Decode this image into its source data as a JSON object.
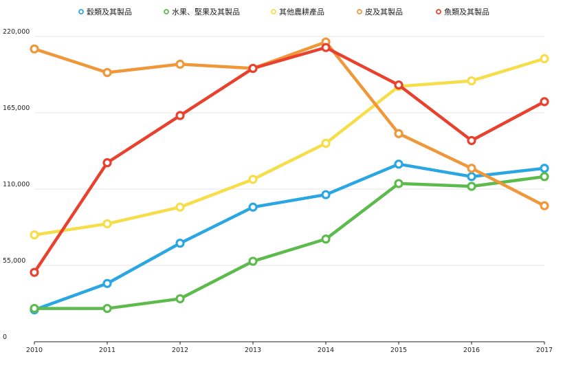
{
  "chart_data": {
    "type": "line",
    "title": "",
    "xlabel": "",
    "ylabel": "",
    "x": [
      "2010",
      "2011",
      "2012",
      "2013",
      "2014",
      "2015",
      "2016",
      "2017"
    ],
    "ylim": [
      0,
      220000
    ],
    "yticks": [
      0,
      55000,
      110000,
      165000,
      220000
    ],
    "ytick_labels": [
      "0",
      "55,000",
      "110,000",
      "165,000",
      "220,000"
    ],
    "grid": true,
    "legend_position": "top",
    "series": [
      {
        "name": "穀類及其製品",
        "color": "#2aa7e3",
        "values": [
          23000,
          42000,
          71000,
          97000,
          106000,
          128000,
          119000,
          125000
        ]
      },
      {
        "name": "水果、堅果及其製品",
        "color": "#5dbb4d",
        "values": [
          24000,
          24000,
          31000,
          58000,
          74000,
          114000,
          112000,
          119000
        ]
      },
      {
        "name": "其他農耕產品",
        "color": "#f6de4a",
        "values": [
          77000,
          85000,
          97000,
          117000,
          143000,
          184000,
          188000,
          204000
        ]
      },
      {
        "name": "皮及其製品",
        "color": "#f0973a",
        "values": [
          211000,
          194000,
          200000,
          197000,
          216000,
          150000,
          125000,
          98000
        ]
      },
      {
        "name": "魚類及其製品",
        "color": "#e8412e",
        "values": [
          50000,
          129000,
          163000,
          197000,
          212000,
          185000,
          145000,
          173000
        ]
      }
    ]
  }
}
